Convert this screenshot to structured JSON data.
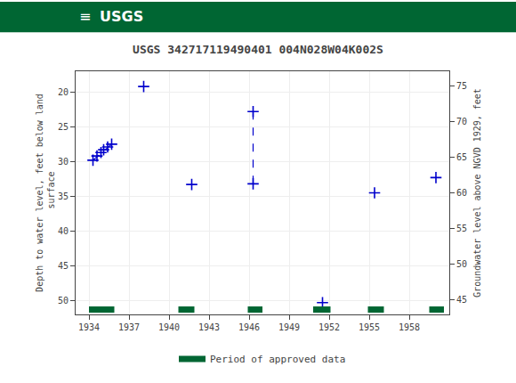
{
  "chart_data": {
    "type": "scatter",
    "title": "USGS 342717119490401 004N028W04K002S",
    "ylabel": "Depth to water level, feet below land\n surface",
    "y2label": "Groundwater level above NGVD 1929, feet",
    "annotations": [
      "≡",
      "USGS"
    ],
    "xlim": [
      1933,
      1961
    ],
    "xticks": [
      1934,
      1937,
      1940,
      1943,
      1946,
      1949,
      1952,
      1955,
      1958
    ],
    "ylim": [
      52,
      17
    ],
    "yticks": [
      20,
      25,
      30,
      35,
      40,
      45,
      50
    ],
    "y2lim": [
      43,
      77
    ],
    "y2ticks": [
      75,
      70,
      65,
      60,
      55,
      50,
      45
    ],
    "grid": true,
    "legend": "bottom",
    "series": [
      {
        "type": "scatter",
        "marker": "+",
        "color": "#0000cc",
        "x": [
          1934.3,
          1934.6,
          1934.9,
          1935.1,
          1935.4,
          1935.7,
          1938.1,
          1941.7,
          1946.3,
          1946.3,
          1951.5,
          1955.4,
          1960.0
        ],
        "values": [
          29.8,
          29.2,
          28.7,
          28.3,
          27.9,
          27.5,
          19.2,
          33.3,
          22.8,
          33.2,
          50.3,
          34.5,
          32.3
        ]
      },
      {
        "type": "line",
        "line_style": "dashed",
        "color": "#0000cc",
        "x": [
          1934.3,
          1935.7
        ],
        "values": [
          29.8,
          27.5
        ]
      },
      {
        "type": "line",
        "line_style": "dashed",
        "color": "#0000cc",
        "x": [
          1946.3,
          1946.3
        ],
        "values": [
          22.8,
          33.2
        ]
      },
      {
        "type": "period",
        "name": "Period of approved data",
        "color": "#006633",
        "periods": [
          [
            1934.0,
            1935.9
          ],
          [
            1940.7,
            1941.9
          ],
          [
            1945.9,
            1947.0
          ],
          [
            1950.8,
            1952.1
          ],
          [
            1954.9,
            1956.1
          ],
          [
            1959.5,
            1960.6
          ]
        ]
      }
    ]
  }
}
